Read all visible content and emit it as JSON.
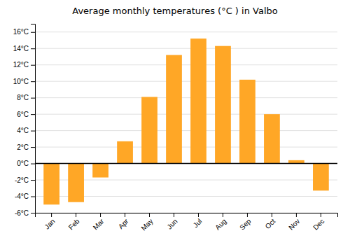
{
  "chart_data": {
    "type": "bar",
    "title": "Average monthly temperatures (°C ) in Valbo",
    "categories": [
      "Jan",
      "Feb",
      "Mar",
      "Apr",
      "May",
      "Jun",
      "Jul",
      "Aug",
      "Sep",
      "Oct",
      "Nov",
      "Dec"
    ],
    "values": [
      -5.0,
      -4.7,
      -1.7,
      2.7,
      8.1,
      13.2,
      15.2,
      14.3,
      10.2,
      6.0,
      0.4,
      -3.3
    ],
    "color": "#FFA726",
    "ylim": [
      -6,
      17
    ],
    "yticks": [
      {
        "value": -6,
        "label": "-6°C"
      },
      {
        "value": -4,
        "label": "-4°C"
      },
      {
        "value": -2,
        "label": "-2°C"
      },
      {
        "value": 0,
        "label": "0°C"
      },
      {
        "value": 2,
        "label": "2°C"
      },
      {
        "value": 4,
        "label": "4°C"
      },
      {
        "value": 6,
        "label": "6°C"
      },
      {
        "value": 8,
        "label": "8°C"
      },
      {
        "value": 10,
        "label": "10°C"
      },
      {
        "value": 12,
        "label": "12°C"
      },
      {
        "value": 14,
        "label": "14°C"
      },
      {
        "value": 16,
        "label": "16°C"
      }
    ],
    "grid": true
  }
}
